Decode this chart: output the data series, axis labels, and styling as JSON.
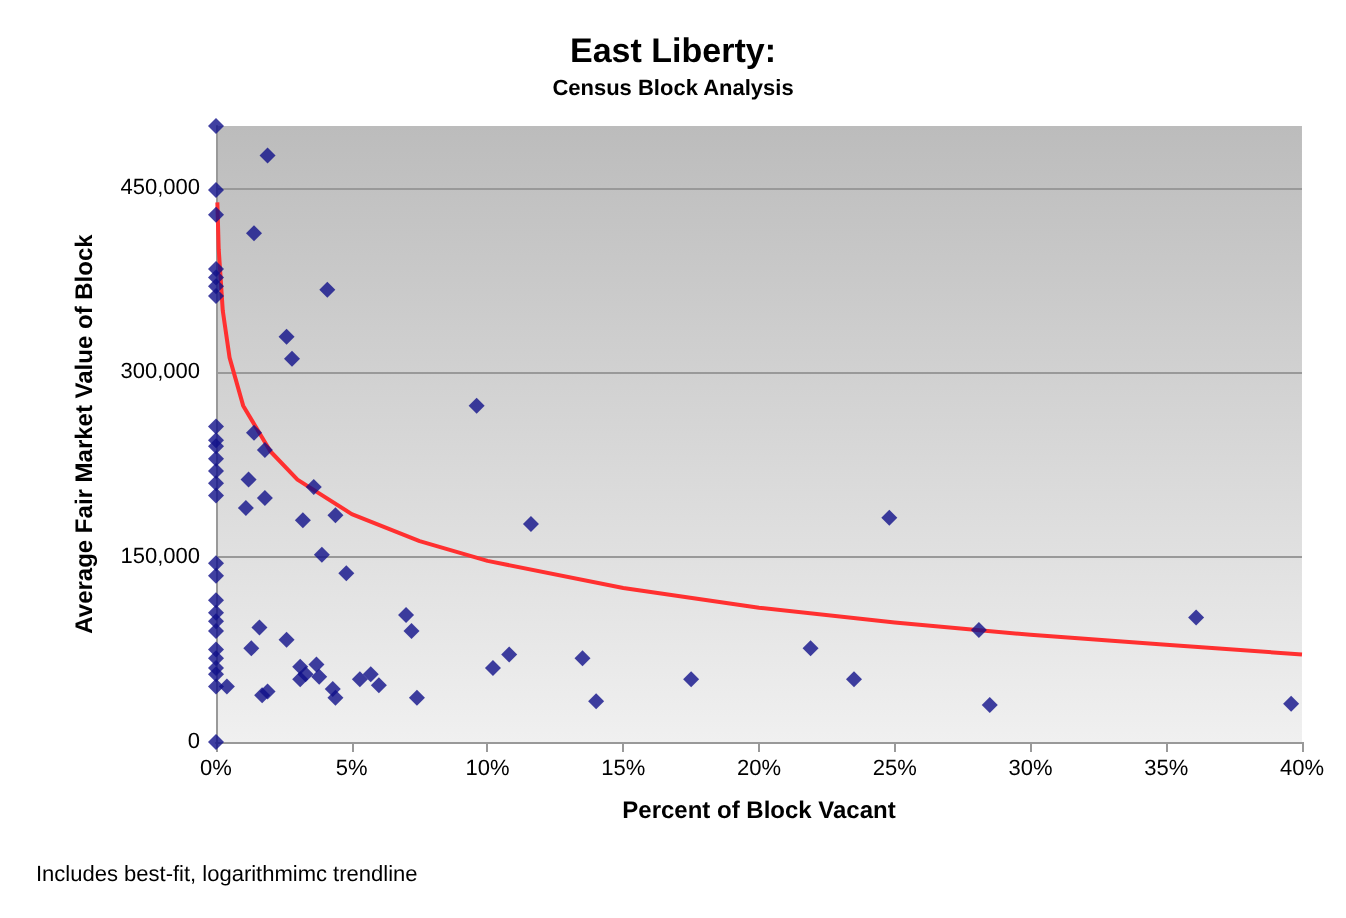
{
  "chart_data": {
    "type": "scatter",
    "title": "East Liberty:",
    "subtitle": "Census Block Analysis",
    "xlabel": "Percent of Block Vacant",
    "ylabel": "Average Fair Market Value of Block",
    "xlim": [
      0,
      40
    ],
    "xticks": [
      {
        "value": 0,
        "label": "0%"
      },
      {
        "value": 5,
        "label": "5%"
      },
      {
        "value": 10,
        "label": "10%"
      },
      {
        "value": 15,
        "label": "15%"
      },
      {
        "value": 20,
        "label": "20%"
      },
      {
        "value": 25,
        "label": "25%"
      },
      {
        "value": 30,
        "label": "30%"
      },
      {
        "value": 35,
        "label": "35%"
      },
      {
        "value": 40,
        "label": "40%"
      }
    ],
    "ylim": [
      0,
      500000
    ],
    "yticks": [
      {
        "value": 0,
        "label": "0"
      },
      {
        "value": 150000,
        "label": "150,000"
      },
      {
        "value": 300000,
        "label": "300,000"
      },
      {
        "value": 450000,
        "label": "450,000"
      }
    ],
    "grid": "y",
    "marker": "diamond",
    "annotations": [
      "Includes best-fit, logarithmimc trendline"
    ],
    "series": [
      {
        "color": "#10108a",
        "x": [
          0,
          1.9,
          1.4,
          0,
          0,
          0,
          0,
          0,
          0,
          4.1,
          2.6,
          2.8,
          9.6,
          1.4,
          1.8,
          0,
          0,
          0,
          0,
          0,
          0,
          0,
          1.2,
          3.6,
          1.1,
          1.8,
          4.4,
          3.2,
          11.6,
          24.8,
          3.9,
          4.8,
          0,
          0,
          0,
          0,
          0,
          0,
          7,
          7.2,
          1.6,
          2.6,
          1.3,
          0,
          0,
          0,
          0,
          0,
          10.2,
          10.8,
          3.1,
          3.7,
          3.3,
          3.8,
          3.1,
          5.3,
          5.7,
          6,
          4.3,
          4.4,
          7.4,
          1.7,
          1.9,
          0.4,
          0,
          13.5,
          14,
          17.5,
          21.9,
          23.5,
          28.1,
          28.5,
          36.1,
          39.6
        ],
        "values": [
          500000,
          476000,
          413000,
          448000,
          428000,
          384000,
          377000,
          370000,
          362000,
          367000,
          329000,
          311000,
          273000,
          251000,
          237000,
          256000,
          245000,
          240000,
          230000,
          220000,
          210000,
          200000,
          213000,
          207000,
          190000,
          198000,
          184000,
          180000,
          177000,
          182000,
          152000,
          137000,
          145000,
          135000,
          115000,
          105000,
          98000,
          90000,
          103000,
          90000,
          93000,
          83000,
          76000,
          75000,
          68000,
          60000,
          55000,
          45000,
          60000,
          71000,
          61000,
          63000,
          55000,
          53000,
          51000,
          51000,
          55000,
          46000,
          43000,
          36000,
          36000,
          38000,
          41000,
          45000,
          0,
          68000,
          33000,
          51000,
          76000,
          51000,
          91000,
          30000,
          101000,
          31000
        ]
      },
      {
        "type": "line",
        "color": "#ff3030",
        "marker": "none",
        "x": [
          0.05,
          0.1,
          0.25,
          0.5,
          1,
          2,
          3,
          5,
          7.5,
          10,
          15,
          20,
          25,
          30,
          35,
          40
        ],
        "values": [
          438000,
          400000,
          350000,
          312000,
          273000,
          236000,
          213000,
          185000,
          163000,
          147000,
          125000,
          109000,
          97000,
          87000,
          79000,
          71000
        ]
      }
    ]
  }
}
